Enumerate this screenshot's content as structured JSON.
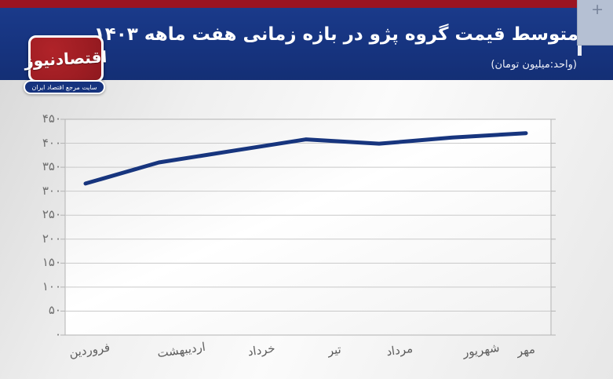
{
  "header": {
    "title": "متوسط قیمت گروه پژو در بازه زمانی هفت ماهه ۱۴۰۳",
    "subtitle": "(واحد:میلیون تومان)",
    "accent_bar_color": "#9b1421",
    "band_color": "#16337e"
  },
  "logo": {
    "name": "اقتصادنیوز",
    "tagline": "سایت مرجع اقتصاد ایران",
    "box_color": "#9e1d23",
    "pill_color": "#16337e"
  },
  "controls": {
    "zoom_in_label": "+"
  },
  "chart_data": {
    "type": "line",
    "title": "متوسط قیمت گروه پژو در بازه زمانی هفت ماهه ۱۴۰۳",
    "unit_label": "(واحد:میلیون تومان)",
    "categories": [
      "فروردین",
      "اردیبهشت",
      "خرداد",
      "تیر",
      "مرداد",
      "شهریور",
      "مهر"
    ],
    "values": [
      316,
      360,
      384,
      408,
      399,
      412,
      421
    ],
    "ylim": [
      0,
      450
    ],
    "ytick_step": 50,
    "yticks": [
      {
        "value": 0,
        "label": "۰"
      },
      {
        "value": 50,
        "label": "۵۰"
      },
      {
        "value": 100,
        "label": "۱۰۰"
      },
      {
        "value": 150,
        "label": "۱۵۰"
      },
      {
        "value": 200,
        "label": "۲۰۰"
      },
      {
        "value": 250,
        "label": "۲۵۰"
      },
      {
        "value": 300,
        "label": "۳۰۰"
      },
      {
        "value": 350,
        "label": "۳۵۰"
      },
      {
        "value": 400,
        "label": "۴۰۰"
      },
      {
        "value": 450,
        "label": "۴۵۰"
      }
    ],
    "grid": true,
    "legend": "none",
    "line_color": "#17357e",
    "gridline_color": "#c9c9c9",
    "axis_color": "#b3b3b3",
    "tick_label_color": "#6f6f6f"
  }
}
